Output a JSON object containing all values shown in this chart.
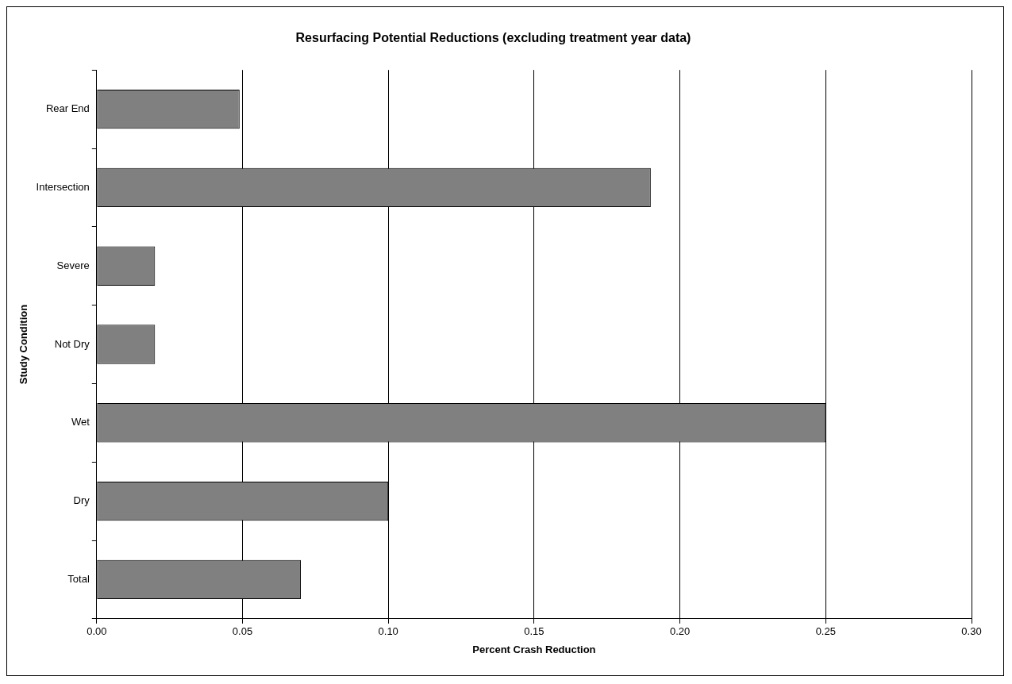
{
  "chart_data": {
    "type": "bar",
    "orientation": "horizontal",
    "title": "Resurfacing Potential Reductions (excluding treatment year data)",
    "xlabel": "Percent Crash Reduction",
    "ylabel": "Study Condition",
    "categories": [
      "Rear End",
      "Intersection",
      "Severe",
      "Not Dry",
      "Wet",
      "Dry",
      "Total"
    ],
    "values": [
      0.049,
      0.19,
      0.02,
      0.02,
      0.25,
      0.1,
      0.07
    ],
    "color": "#808080",
    "xlim": [
      0,
      0.3
    ],
    "xticks": [
      {
        "value": 0,
        "label": "0.00"
      },
      {
        "value": 0.05,
        "label": "0.05"
      },
      {
        "value": 0.1,
        "label": "0.10"
      },
      {
        "value": 0.15,
        "label": "0.15"
      },
      {
        "value": 0.2,
        "label": "0.20"
      },
      {
        "value": 0.25,
        "label": "0.25"
      },
      {
        "value": 0.3,
        "label": "0.30"
      }
    ],
    "grid": "x",
    "legend": false
  }
}
